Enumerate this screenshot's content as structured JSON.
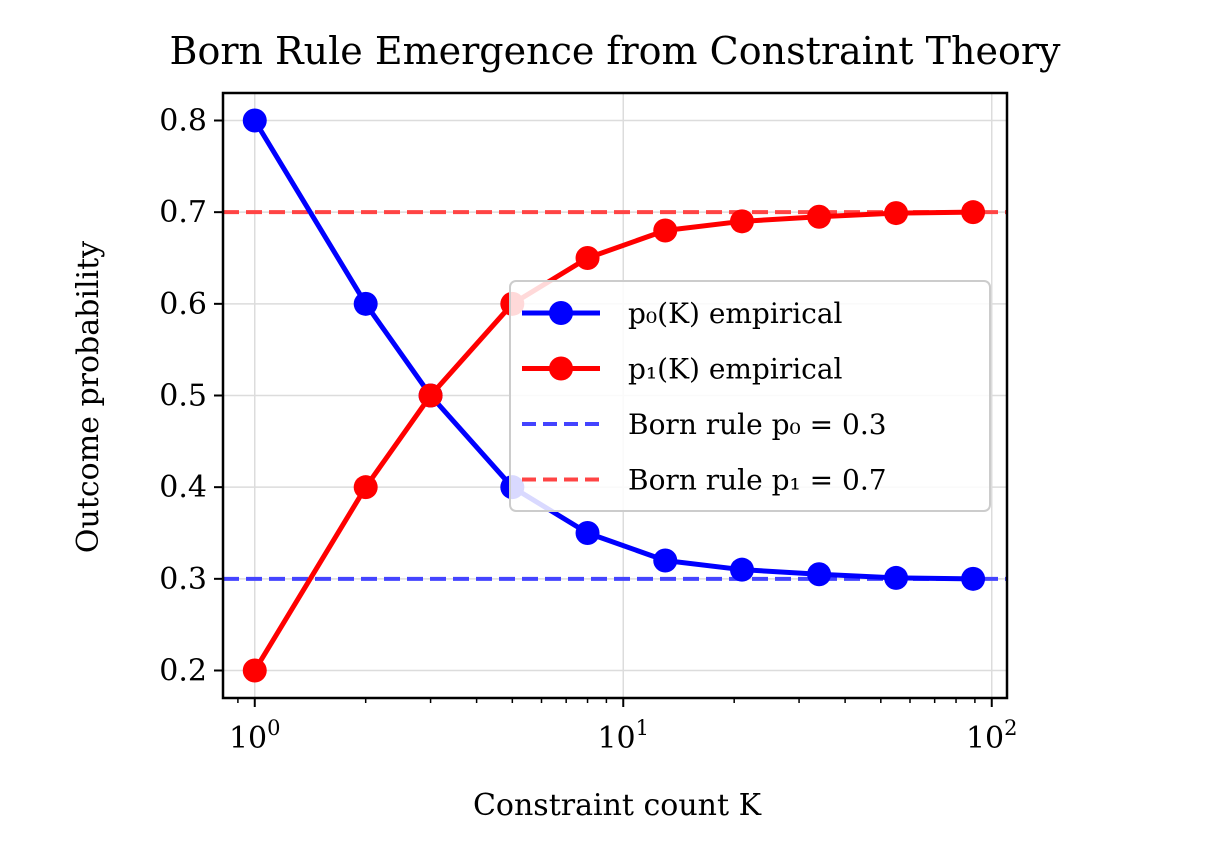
{
  "chart_data": {
    "type": "line",
    "title": "Born Rule Emergence from Constraint Theory",
    "xlabel": "Constraint count K",
    "ylabel": "Outcome probability",
    "xscale": "log",
    "xlim": [
      0.82,
      110
    ],
    "ylim": [
      0.17,
      0.83
    ],
    "grid": true,
    "legend_position": "center-right",
    "x": [
      1,
      2,
      3,
      5,
      8,
      13,
      21,
      34,
      55,
      89
    ],
    "series": [
      {
        "name": "p₀(K) empirical",
        "color": "#0000ff",
        "values": [
          0.8,
          0.6,
          0.5,
          0.4,
          0.35,
          0.32,
          0.31,
          0.305,
          0.301,
          0.3
        ]
      },
      {
        "name": "p₁(K) empirical",
        "color": "#ff0000",
        "values": [
          0.2,
          0.4,
          0.5,
          0.6,
          0.65,
          0.68,
          0.69,
          0.695,
          0.699,
          0.7
        ]
      }
    ],
    "reference_lines": [
      {
        "name": "Born rule p₀ = 0.3",
        "y": 0.3,
        "color": "#4444ff",
        "style": "dashed"
      },
      {
        "name": "Born rule p₁ = 0.7",
        "y": 0.7,
        "color": "#ff4444",
        "style": "dashed"
      }
    ],
    "y_ticks": [
      {
        "value": 0.2,
        "label": "0.2"
      },
      {
        "value": 0.3,
        "label": "0.3"
      },
      {
        "value": 0.4,
        "label": "0.4"
      },
      {
        "value": 0.5,
        "label": "0.5"
      },
      {
        "value": 0.6,
        "label": "0.6"
      },
      {
        "value": 0.7,
        "label": "0.7"
      },
      {
        "value": 0.8,
        "label": "0.8"
      }
    ],
    "x_ticks": [
      {
        "value": 1,
        "base": "10",
        "exponent": "0"
      },
      {
        "value": 10,
        "base": "10",
        "exponent": "1"
      },
      {
        "value": 100,
        "base": "10",
        "exponent": "2"
      }
    ]
  }
}
